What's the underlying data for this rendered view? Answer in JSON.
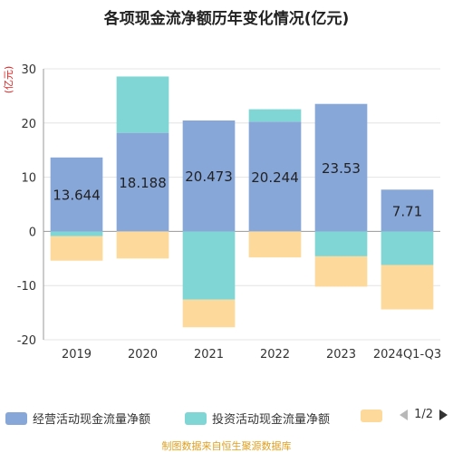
{
  "title": "各项现金流净额历年变化情况(亿元)",
  "source": "制图数据来自恒生聚源数据库",
  "pager": "1/2",
  "chart_data": {
    "type": "bar",
    "stacked": true,
    "categories": [
      "2019",
      "2020",
      "2021",
      "2022",
      "2023",
      "2024Q1-Q3"
    ],
    "ylabel": "(亿元)",
    "ylim": [
      -20,
      30
    ],
    "yticks": [
      -20,
      -10,
      0,
      10,
      20,
      30
    ],
    "grid": true,
    "legend_position": "bottom",
    "series": [
      {
        "name": "经营活动现金流量净额",
        "color": "#88a7d9",
        "values": [
          13.644,
          18.188,
          20.473,
          20.244,
          23.53,
          7.71
        ]
      },
      {
        "name": "投资活动现金流量净额",
        "color": "#7fd6d4",
        "values": [
          -0.9,
          10.4,
          -12.6,
          2.3,
          -4.6,
          -6.2
        ]
      },
      {
        "name": "",
        "color": "#fdd99b",
        "values": [
          -4.5,
          -5.0,
          -5.1,
          -4.8,
          -5.6,
          -8.2
        ]
      }
    ],
    "data_labels": [
      "13.644",
      "18.188",
      "20.473",
      "20.244",
      "23.53",
      "7.71"
    ]
  }
}
